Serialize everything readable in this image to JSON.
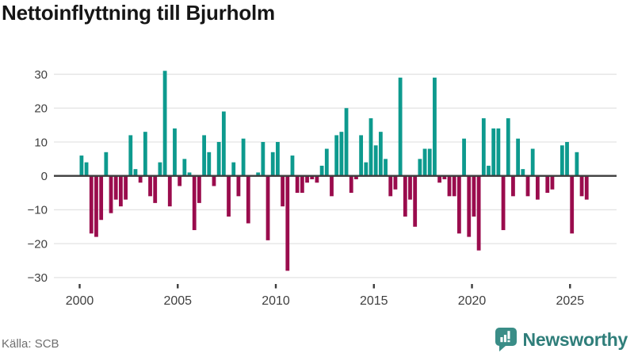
{
  "title": "Nettoinflyttning till Bjurholm",
  "source": {
    "text": "Källa: SCB"
  },
  "logo": {
    "text": "Newsworthy",
    "icon": "bar-chart-speech-bubble-icon"
  },
  "colors": {
    "positive": "#0d9a8e",
    "negative": "#9a0c4d",
    "grid": "#e3e3e3",
    "zero_axis": "#3c3c3c",
    "tick_text": "#3f3f3f",
    "title_text": "#161616",
    "source_text": "#6f6f6f",
    "logo_teal": "#3a8d87",
    "logo_text_teal": "#2f7e7a"
  },
  "chart_data": {
    "type": "bar",
    "title": "Nettoinflyttning till Bjurholm",
    "x_unit": "quarter",
    "grid": true,
    "legend": "none",
    "ylim": [
      -32,
      33
    ],
    "y_ticks": [
      30,
      20,
      10,
      0,
      -10,
      -20,
      -30
    ],
    "y_tick_labels": [
      "30",
      "20",
      "10",
      "0",
      "−10",
      "−20",
      "−30"
    ],
    "x_tick_years": [
      2000,
      2005,
      2010,
      2015,
      2020,
      2025
    ],
    "series_name": "Nettoinflyttning per kvartal",
    "years": [
      {
        "year": 2000,
        "q": [
          6,
          4,
          -17,
          -18
        ]
      },
      {
        "year": 2001,
        "q": [
          -13,
          7,
          -11,
          -7
        ]
      },
      {
        "year": 2002,
        "q": [
          -9,
          -7,
          12,
          2
        ]
      },
      {
        "year": 2003,
        "q": [
          -2,
          13,
          -6,
          -8
        ]
      },
      {
        "year": 2004,
        "q": [
          4,
          31,
          -9,
          14
        ]
      },
      {
        "year": 2005,
        "q": [
          -3,
          5,
          1,
          -16
        ]
      },
      {
        "year": 2006,
        "q": [
          -8,
          12,
          7,
          -3
        ]
      },
      {
        "year": 2007,
        "q": [
          10,
          19,
          -12,
          4
        ]
      },
      {
        "year": 2008,
        "q": [
          -6,
          11,
          -14,
          0
        ]
      },
      {
        "year": 2009,
        "q": [
          1,
          10,
          -19,
          7
        ]
      },
      {
        "year": 2010,
        "q": [
          10,
          -9,
          -28,
          6
        ]
      },
      {
        "year": 2011,
        "q": [
          -5,
          -5,
          -2,
          -1
        ]
      },
      {
        "year": 2012,
        "q": [
          -2,
          3,
          8,
          -6
        ]
      },
      {
        "year": 2013,
        "q": [
          12,
          13,
          20,
          -5
        ]
      },
      {
        "year": 2014,
        "q": [
          -1,
          12,
          4,
          17
        ]
      },
      {
        "year": 2015,
        "q": [
          9,
          13,
          5,
          -6
        ]
      },
      {
        "year": 2016,
        "q": [
          -4,
          29,
          -12,
          -7
        ]
      },
      {
        "year": 2017,
        "q": [
          -15,
          5,
          8,
          8
        ]
      },
      {
        "year": 2018,
        "q": [
          29,
          -2,
          -1,
          -6
        ]
      },
      {
        "year": 2019,
        "q": [
          -6,
          -17,
          11,
          -18
        ]
      },
      {
        "year": 2020,
        "q": [
          -12,
          -22,
          17,
          3
        ]
      },
      {
        "year": 2021,
        "q": [
          14,
          14,
          -16,
          17
        ]
      },
      {
        "year": 2022,
        "q": [
          -6,
          11,
          2,
          -6
        ]
      },
      {
        "year": 2023,
        "q": [
          8,
          -7,
          0,
          -5
        ]
      },
      {
        "year": 2024,
        "q": [
          -4,
          0,
          9,
          10
        ]
      },
      {
        "year": 2025,
        "q": [
          -17,
          7,
          -6,
          -7
        ]
      }
    ]
  }
}
